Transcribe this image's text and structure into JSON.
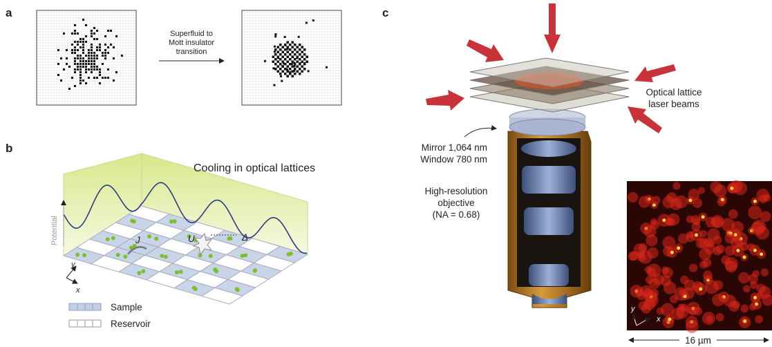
{
  "panel_a": {
    "label": "a",
    "transition_text": [
      "Superfluid to",
      "Mott insulator",
      "transition"
    ]
  },
  "panel_b": {
    "label": "b",
    "title": "Cooling in optical lattices",
    "potential_axis": "Potential",
    "symbols": [
      "J",
      "U",
      "Δ"
    ],
    "axes": [
      "y",
      "x"
    ],
    "legend": [
      "Sample",
      "Reservoir"
    ]
  },
  "panel_c": {
    "label": "c",
    "beams_text": [
      "Optical lattice",
      "laser beams"
    ],
    "mirror_text": [
      "Mirror 1,064 nm",
      "Window 780 nm"
    ],
    "objective_text": [
      "High-resolution",
      "objective",
      "(NA = 0.68)"
    ],
    "image_axes": [
      "y",
      "x"
    ],
    "scale_bar": "16 µm"
  }
}
